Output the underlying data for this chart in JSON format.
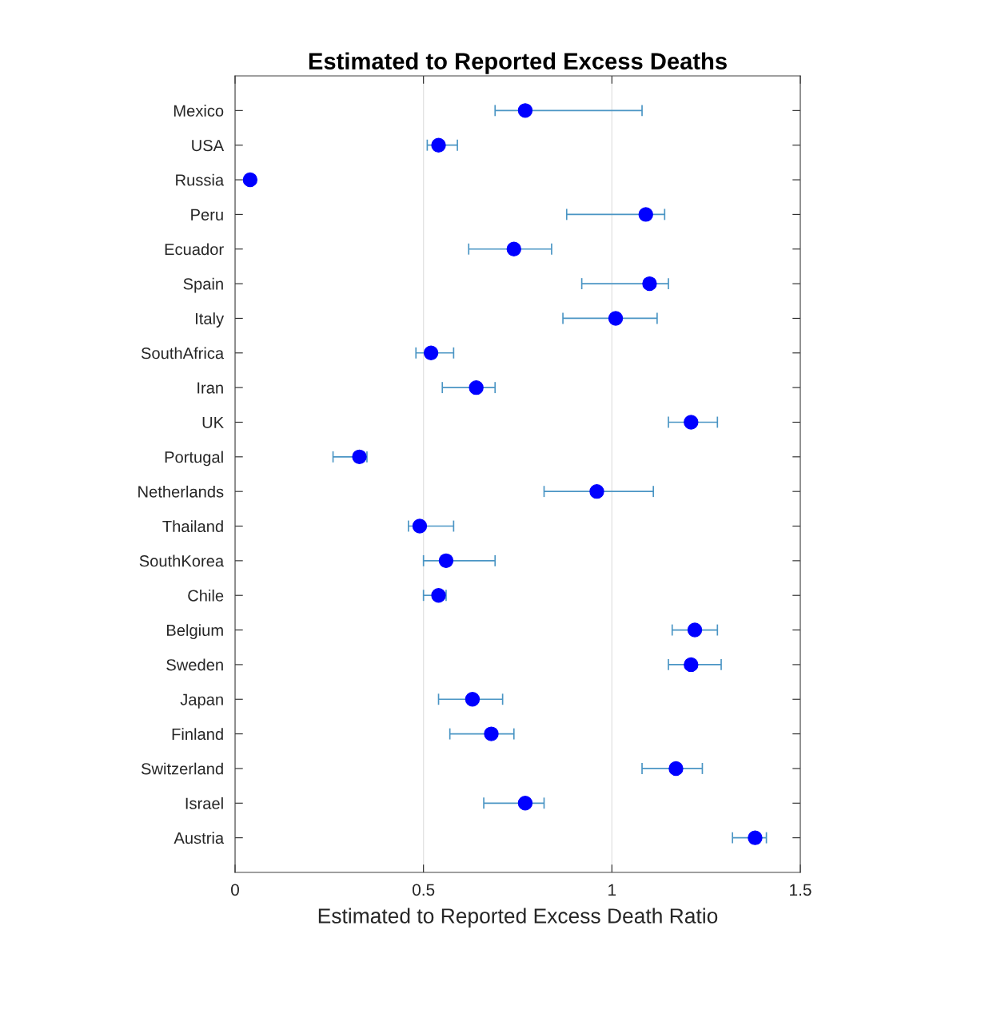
{
  "chart_data": {
    "type": "scatter",
    "orientation": "horizontal",
    "title": "Estimated to Reported Excess Deaths",
    "xlabel": "Estimated to Reported Excess Death Ratio",
    "categories": [
      "Mexico",
      "USA",
      "Russia",
      "Peru",
      "Ecuador",
      "Spain",
      "Italy",
      "SouthAfrica",
      "Iran",
      "UK",
      "Portugal",
      "Netherlands",
      "Thailand",
      "SouthKorea",
      "Chile",
      "Belgium",
      "Sweden",
      "Japan",
      "Finland",
      "Switzerland",
      "Israel",
      "Austria"
    ],
    "series": [
      {
        "color": "#0000ff",
        "values": [
          0.77,
          0.54,
          0.04,
          1.09,
          0.74,
          1.1,
          1.01,
          0.52,
          0.64,
          1.21,
          0.33,
          0.96,
          0.49,
          0.56,
          0.54,
          1.22,
          1.21,
          0.63,
          0.68,
          1.17,
          0.77,
          1.38
        ],
        "errors": [
          [
            0.69,
            1.08
          ],
          [
            0.51,
            0.59
          ],
          null,
          [
            0.88,
            1.14
          ],
          [
            0.62,
            0.84
          ],
          [
            0.92,
            1.15
          ],
          [
            0.87,
            1.12
          ],
          [
            0.48,
            0.58
          ],
          [
            0.55,
            0.69
          ],
          [
            1.15,
            1.28
          ],
          [
            0.26,
            0.35
          ],
          [
            0.82,
            1.11
          ],
          [
            0.46,
            0.58
          ],
          [
            0.5,
            0.69
          ],
          [
            0.5,
            0.56
          ],
          [
            1.16,
            1.28
          ],
          [
            1.15,
            1.29
          ],
          [
            0.54,
            0.71
          ],
          [
            0.57,
            0.74
          ],
          [
            1.08,
            1.24
          ],
          [
            0.66,
            0.82
          ],
          [
            1.32,
            1.41
          ]
        ]
      }
    ],
    "xlim": [
      0,
      1.5
    ],
    "xticks": [
      0,
      0.5,
      1,
      1.5
    ],
    "grid": "x",
    "marker": "circle",
    "legend": false
  }
}
